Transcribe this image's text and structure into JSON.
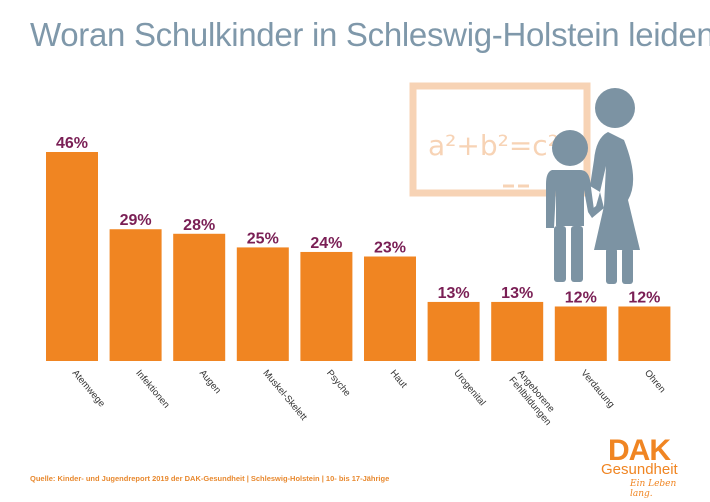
{
  "title": "Woran Schulkinder in Schleswig-Holstein leiden",
  "source": "Quelle: Kinder- und Jugendreport 2019 der DAK-Gesundheit | Schleswig-Holstein | 10- bis 17-Jährige",
  "logo": {
    "main": "DAK",
    "sub": "Gesundheit",
    "tagline": "Ein Leben lang."
  },
  "illustration": {
    "board_text": "a²+b²=c²",
    "icon": "teacher-and-child-at-chalkboard-icon"
  },
  "colors": {
    "bar": "#f08522",
    "value_label": "#7a1f55",
    "title": "#7f98aa",
    "figure": "#7c93a3",
    "board": "#f7d3b5"
  },
  "chart_data": {
    "type": "bar",
    "title": "Woran Schulkinder in Schleswig-Holstein leiden",
    "xlabel": "",
    "ylabel": "",
    "ylim": [
      0,
      50
    ],
    "categories": [
      "Atemwege",
      "Infektionen",
      "Augen",
      "Muskel-Skelett",
      "Psyche",
      "Haut",
      "Urogenital",
      "Angeborene Fehlbildungen",
      "Verdauung",
      "Ohren"
    ],
    "values": [
      46,
      29,
      28,
      25,
      24,
      23,
      13,
      13,
      12,
      12
    ],
    "value_labels": [
      "46%",
      "29%",
      "28%",
      "25%",
      "24%",
      "23%",
      "13%",
      "13%",
      "12%",
      "12%"
    ],
    "grid": false,
    "legend": "none"
  }
}
